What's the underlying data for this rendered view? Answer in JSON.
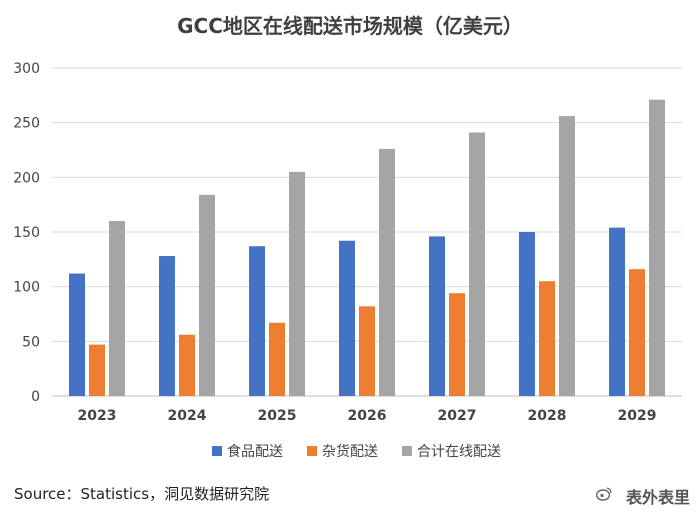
{
  "chart_data": {
    "type": "bar",
    "title": "GCC地区在线配送市场规模（亿美元）",
    "categories": [
      "2023",
      "2024",
      "2025",
      "2026",
      "2027",
      "2028",
      "2029"
    ],
    "series": [
      {
        "name": "食品配送",
        "color": "#4472c4",
        "values": [
          112,
          128,
          137,
          142,
          146,
          150,
          154
        ]
      },
      {
        "name": "杂货配送",
        "color": "#ed7d31",
        "values": [
          47,
          56,
          67,
          82,
          94,
          105,
          116
        ]
      },
      {
        "name": "合计在线配送",
        "color": "#a5a5a5",
        "values": [
          160,
          184,
          205,
          226,
          241,
          256,
          271
        ]
      }
    ],
    "ylim": [
      0,
      300
    ],
    "yticks": [
      0,
      50,
      100,
      150,
      200,
      250,
      300
    ],
    "grid": true,
    "legend_position": "bottom"
  },
  "source": "Source：Statistics，洞见数据研究院",
  "watermark": "表外表里"
}
